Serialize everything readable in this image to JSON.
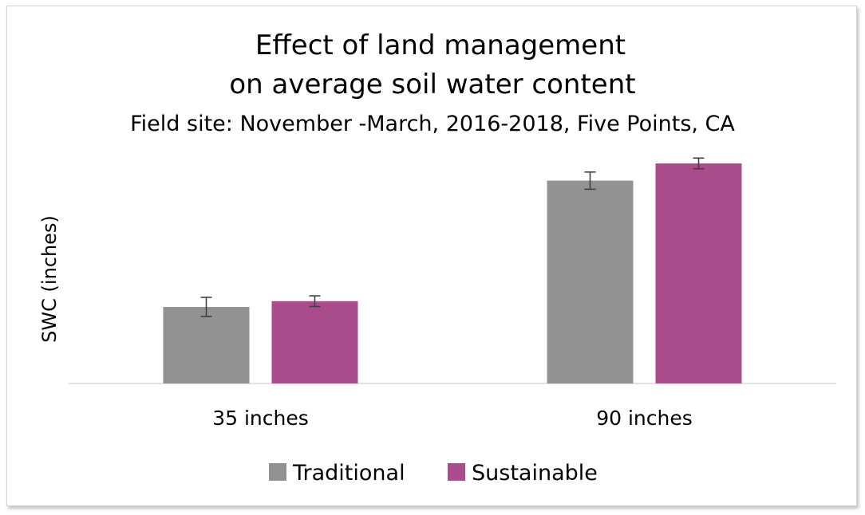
{
  "chart_data": {
    "type": "bar",
    "title": "Effect of land management",
    "title_line2": "on average soil water content",
    "subtitle": "Field site: November -March, 2016-2018, Five Points, CA",
    "xlabel": "",
    "ylabel": "SWC (inches)",
    "categories": [
      "35 inches",
      "90 inches"
    ],
    "ylim": [
      0,
      12
    ],
    "series": [
      {
        "name": "Traditional",
        "color": "#929292",
        "values": [
          4.0,
          10.6
        ],
        "errors": [
          0.5,
          0.45
        ]
      },
      {
        "name": "Sustainable",
        "color": "#aa4c8c",
        "values": [
          4.3,
          11.5
        ],
        "errors": [
          0.28,
          0.28
        ]
      }
    ],
    "legend": "bottom",
    "grid": false
  }
}
